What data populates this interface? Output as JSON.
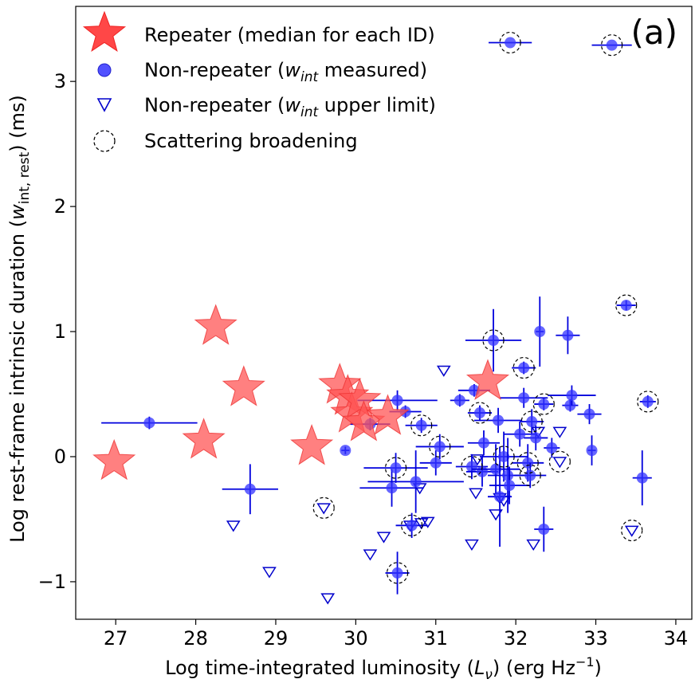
{
  "chart_data": {
    "type": "scatter",
    "panel_label": "(a)",
    "xlabel": "Log time-integrated luminosity (L_ν) (erg Hz⁻¹)",
    "ylabel": "Log rest-frame intrinsic duration (w_int, rest) (ms)",
    "xlim": [
      26.5,
      34.2
    ],
    "ylim": [
      -1.3,
      3.6
    ],
    "xticks": [
      "27",
      "28",
      "29",
      "30",
      "31",
      "32",
      "33",
      "34"
    ],
    "yticks": [
      "−1",
      "0",
      "1",
      "2",
      "3"
    ],
    "xtick_values": [
      27,
      28,
      29,
      30,
      31,
      32,
      33,
      34
    ],
    "ytick_values": [
      -1,
      0,
      1,
      2,
      3
    ],
    "legend": {
      "placement": "upper-left",
      "entries": [
        {
          "label": "Repeater (median for each ID)",
          "marker": "star",
          "color": "#ff3333"
        },
        {
          "label": "Non-repeater (w_int measured)",
          "marker": "circle",
          "color": "#3333ff"
        },
        {
          "label": "Non-repeater (w_int upper limit)",
          "marker": "triangle-down",
          "color": "#0000cc"
        },
        {
          "label": "Scattering broadening",
          "marker": "dashed-circle",
          "color": "#000000"
        }
      ]
    },
    "series": [
      {
        "name": "Repeater (median for each ID)",
        "marker": "star",
        "color": "#ff5555",
        "points": [
          {
            "x": 26.98,
            "y": -0.04
          },
          {
            "x": 28.1,
            "y": 0.13
          },
          {
            "x": 28.25,
            "y": 1.04
          },
          {
            "x": 28.6,
            "y": 0.55
          },
          {
            "x": 29.45,
            "y": 0.08
          },
          {
            "x": 29.8,
            "y": 0.57
          },
          {
            "x": 29.9,
            "y": 0.48
          },
          {
            "x": 29.95,
            "y": 0.34
          },
          {
            "x": 30.05,
            "y": 0.45
          },
          {
            "x": 30.1,
            "y": 0.27
          },
          {
            "x": 30.4,
            "y": 0.32
          },
          {
            "x": 31.65,
            "y": 0.6
          }
        ]
      },
      {
        "name": "Non-repeater (w_int measured)",
        "marker": "circle",
        "color": "#3333ff",
        "points": [
          {
            "x": 31.93,
            "y": 3.31,
            "xerr": 0.27,
            "yerr": 0.0,
            "scat": true
          },
          {
            "x": 33.2,
            "y": 3.29,
            "xerr": 0.25,
            "yerr": 0.0,
            "scat": true
          },
          {
            "x": 27.42,
            "y": 0.27,
            "xerr": 0.6,
            "yerr": 0.05
          },
          {
            "x": 28.68,
            "y": -0.26,
            "xerr": 0.35,
            "yerr": 0.2
          },
          {
            "x": 29.87,
            "y": 0.05,
            "xerr": 0.05,
            "yerr": 0.03
          },
          {
            "x": 30.18,
            "y": 0.26,
            "xerr": 0.25,
            "yerr": 0.05
          },
          {
            "x": 30.45,
            "y": -0.25,
            "xerr": 0.4,
            "yerr": 0.15
          },
          {
            "x": 30.5,
            "y": -0.09,
            "xerr": 0.4,
            "yerr": 0.12,
            "scat": true
          },
          {
            "x": 30.52,
            "y": 0.45,
            "xerr": 0.5,
            "yerr": 0.08
          },
          {
            "x": 30.52,
            "y": -0.93,
            "xerr": 0.15,
            "yerr": 0.17,
            "scat": true
          },
          {
            "x": 30.62,
            "y": 0.36,
            "xerr": 0.2,
            "yerr": 0.05
          },
          {
            "x": 30.7,
            "y": -0.55,
            "xerr": 0.2,
            "yerr": 0.1,
            "scat": true
          },
          {
            "x": 30.75,
            "y": -0.2,
            "xerr": 0.6,
            "yerr": 0.25
          },
          {
            "x": 30.82,
            "y": 0.25,
            "xerr": 0.2,
            "yerr": 0.06,
            "scat": true
          },
          {
            "x": 31.0,
            "y": -0.05,
            "xerr": 0.2,
            "yerr": 0.1
          },
          {
            "x": 31.05,
            "y": 0.08,
            "xerr": 0.3,
            "yerr": 0.1,
            "scat": true
          },
          {
            "x": 31.3,
            "y": 0.45,
            "xerr": 0.12,
            "yerr": 0.05
          },
          {
            "x": 31.45,
            "y": -0.08,
            "xerr": 0.2,
            "yerr": 0.1,
            "scat": true
          },
          {
            "x": 31.48,
            "y": 0.53,
            "xerr": 0.2,
            "yerr": 0.05
          },
          {
            "x": 31.55,
            "y": 0.35,
            "xerr": 0.15,
            "yerr": 0.06,
            "scat": true
          },
          {
            "x": 31.58,
            "y": -0.12,
            "xerr": 0.2,
            "yerr": 0.12
          },
          {
            "x": 31.6,
            "y": 0.11,
            "xerr": 0.2,
            "yerr": 0.1
          },
          {
            "x": 31.72,
            "y": 0.93,
            "xerr": 0.35,
            "yerr": 0.25,
            "scat": true
          },
          {
            "x": 31.75,
            "y": -0.1,
            "xerr": 0.3,
            "yerr": 0.2
          },
          {
            "x": 31.78,
            "y": 0.29,
            "xerr": 0.3,
            "yerr": 0.1
          },
          {
            "x": 31.8,
            "y": -0.32,
            "xerr": 0.15,
            "yerr": 0.4
          },
          {
            "x": 31.85,
            "y": 0.0,
            "xerr": 0.3,
            "yerr": 0.2,
            "scat": true
          },
          {
            "x": 31.9,
            "y": -0.15,
            "xerr": 0.25,
            "yerr": 0.3
          },
          {
            "x": 31.92,
            "y": -0.23,
            "xerr": 0.25,
            "yerr": 0.15
          },
          {
            "x": 32.05,
            "y": 0.18,
            "xerr": 0.2,
            "yerr": 0.1
          },
          {
            "x": 32.1,
            "y": 0.71,
            "xerr": 0.15,
            "yerr": 0.05,
            "scat": true
          },
          {
            "x": 32.1,
            "y": 0.47,
            "xerr": 0.3,
            "yerr": 0.08
          },
          {
            "x": 32.15,
            "y": -0.05,
            "xerr": 0.2,
            "yerr": 0.15,
            "scat": true
          },
          {
            "x": 32.18,
            "y": -0.15,
            "xerr": 0.2,
            "yerr": 0.1,
            "scat": true
          },
          {
            "x": 32.2,
            "y": 0.28,
            "xerr": 0.15,
            "yerr": 0.1,
            "scat": true
          },
          {
            "x": 32.25,
            "y": 0.15,
            "xerr": 0.15,
            "yerr": 0.1
          },
          {
            "x": 32.3,
            "y": 1.0,
            "xerr": 0.05,
            "yerr": 0.28
          },
          {
            "x": 32.35,
            "y": 0.42,
            "xerr": 0.12,
            "yerr": 0.05,
            "scat": true
          },
          {
            "x": 32.35,
            "y": -0.58,
            "xerr": 0.12,
            "yerr": 0.18
          },
          {
            "x": 32.45,
            "y": 0.07,
            "xerr": 0.1,
            "yerr": 0.08
          },
          {
            "x": 32.65,
            "y": 0.97,
            "xerr": 0.15,
            "yerr": 0.15
          },
          {
            "x": 32.68,
            "y": 0.41,
            "xerr": 0.1,
            "yerr": 0.05
          },
          {
            "x": 32.7,
            "y": 0.49,
            "xerr": 0.3,
            "yerr": 0.08
          },
          {
            "x": 32.92,
            "y": 0.34,
            "xerr": 0.15,
            "yerr": 0.08
          },
          {
            "x": 32.95,
            "y": 0.05,
            "xerr": 0.05,
            "yerr": 0.12
          },
          {
            "x": 33.38,
            "y": 1.21,
            "xerr": 0.12,
            "yerr": 0.04,
            "scat": true
          },
          {
            "x": 33.58,
            "y": -0.17,
            "xerr": 0.12,
            "yerr": 0.22
          },
          {
            "x": 33.65,
            "y": 0.44,
            "xerr": 0.1,
            "yerr": 0.05,
            "scat": true
          }
        ]
      },
      {
        "name": "Non-repeater (w_int upper limit)",
        "marker": "triangle-down",
        "color": "#0000cc",
        "points": [
          {
            "x": 28.47,
            "y": -0.55
          },
          {
            "x": 28.92,
            "y": -0.92
          },
          {
            "x": 29.6,
            "y": -0.41,
            "scat": true
          },
          {
            "x": 29.65,
            "y": -1.13
          },
          {
            "x": 30.18,
            "y": -0.78
          },
          {
            "x": 30.35,
            "y": -0.64
          },
          {
            "x": 30.68,
            "y": -0.55
          },
          {
            "x": 30.8,
            "y": -0.25
          },
          {
            "x": 30.82,
            "y": -0.53
          },
          {
            "x": 30.9,
            "y": -0.52
          },
          {
            "x": 31.1,
            "y": 0.69
          },
          {
            "x": 31.45,
            "y": -0.7
          },
          {
            "x": 31.5,
            "y": -0.29
          },
          {
            "x": 31.52,
            "y": -0.02
          },
          {
            "x": 31.75,
            "y": -0.46
          },
          {
            "x": 31.8,
            "y": -0.33
          },
          {
            "x": 31.85,
            "y": -0.35
          },
          {
            "x": 32.22,
            "y": -0.7
          },
          {
            "x": 32.28,
            "y": 0.2
          },
          {
            "x": 32.55,
            "y": 0.2
          },
          {
            "x": 32.55,
            "y": -0.04,
            "scat": true
          },
          {
            "x": 33.45,
            "y": -0.59,
            "scat": true
          }
        ]
      }
    ]
  }
}
